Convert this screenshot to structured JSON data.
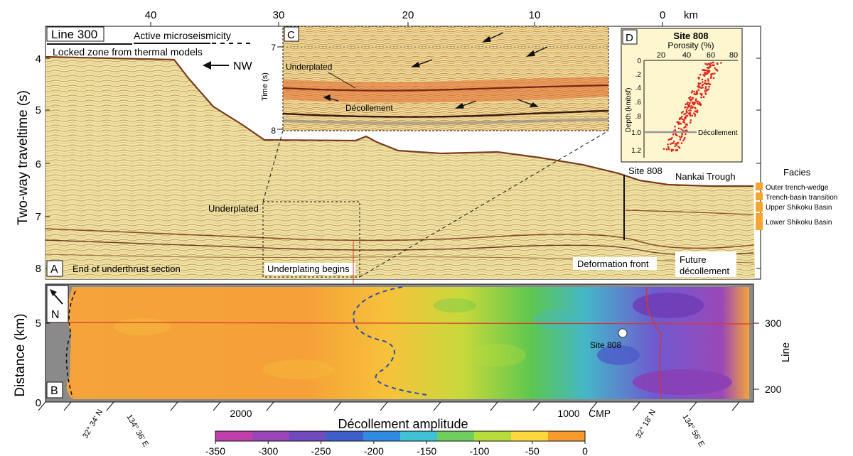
{
  "top_axis": {
    "ticks": [
      "40",
      "30",
      "20",
      "10",
      "0"
    ],
    "unit": "km"
  },
  "panel_a": {
    "letter": "A",
    "line_label": "Line 300",
    "active_seis": "Active microseismicity",
    "locked_zone": "Locked zone from thermal models",
    "nw": "NW",
    "y_label": "Two-way traveltime (s)",
    "y_ticks": [
      "4",
      "5",
      "6",
      "7",
      "8"
    ],
    "underplated": "Underplated",
    "underplating_begins": "Underplating begins",
    "end_underthrust": "End of underthrust section",
    "deformation_front": "Deformation front",
    "future_decollement_1": "Future",
    "future_decollement_2": "décollement",
    "site808": "Site 808",
    "nankai": "Nankai Trough"
  },
  "panel_c": {
    "letter": "C",
    "y_label": "Time (s)",
    "y_ticks": [
      "7",
      "8"
    ],
    "underplated": "Underplated",
    "decollement": "Décollement"
  },
  "panel_d": {
    "letter": "D",
    "title": "Site 808",
    "x_label": "Porosity (%)",
    "x_ticks": [
      "20",
      "40",
      "60",
      "80"
    ],
    "y_label": "Depth (kmbsf)",
    "y_ticks": [
      "0",
      ".2",
      ".4",
      ".6",
      ".8",
      "1.0",
      "1.2"
    ],
    "decollement": "Décollement"
  },
  "facies": {
    "title": "Facies",
    "items": [
      "Outer trench-wedge",
      "Trench-basin transition",
      "Upper Shikoku Basin",
      "Lower Shikoku Basin"
    ],
    "color": "#f7a531"
  },
  "panel_b": {
    "letter": "B",
    "north": "N",
    "y_label": "Distance (km)",
    "y_ticks": [
      "5",
      "0"
    ],
    "right_label": "Line",
    "right_ticks": [
      "300",
      "200"
    ],
    "site808": "Site 808",
    "cmp_ticks": [
      "2000",
      "1000"
    ],
    "cmp_label": "CMP",
    "coords": [
      "32° 34' N",
      "134° 36' E",
      "32° 18' N",
      "134° 56' E"
    ]
  },
  "colorbar": {
    "title": "Décollement amplitude",
    "ticks": [
      "-350",
      "-300",
      "-250",
      "-200",
      "-150",
      "-100",
      "-50",
      "0"
    ],
    "colors": [
      "#c13fa8",
      "#9b46b8",
      "#6f4bbd",
      "#3f5fc8",
      "#2f8be0",
      "#3ec3d6",
      "#6fcf5e",
      "#b6dd3a",
      "#ffd93a",
      "#f89a2c"
    ]
  }
}
